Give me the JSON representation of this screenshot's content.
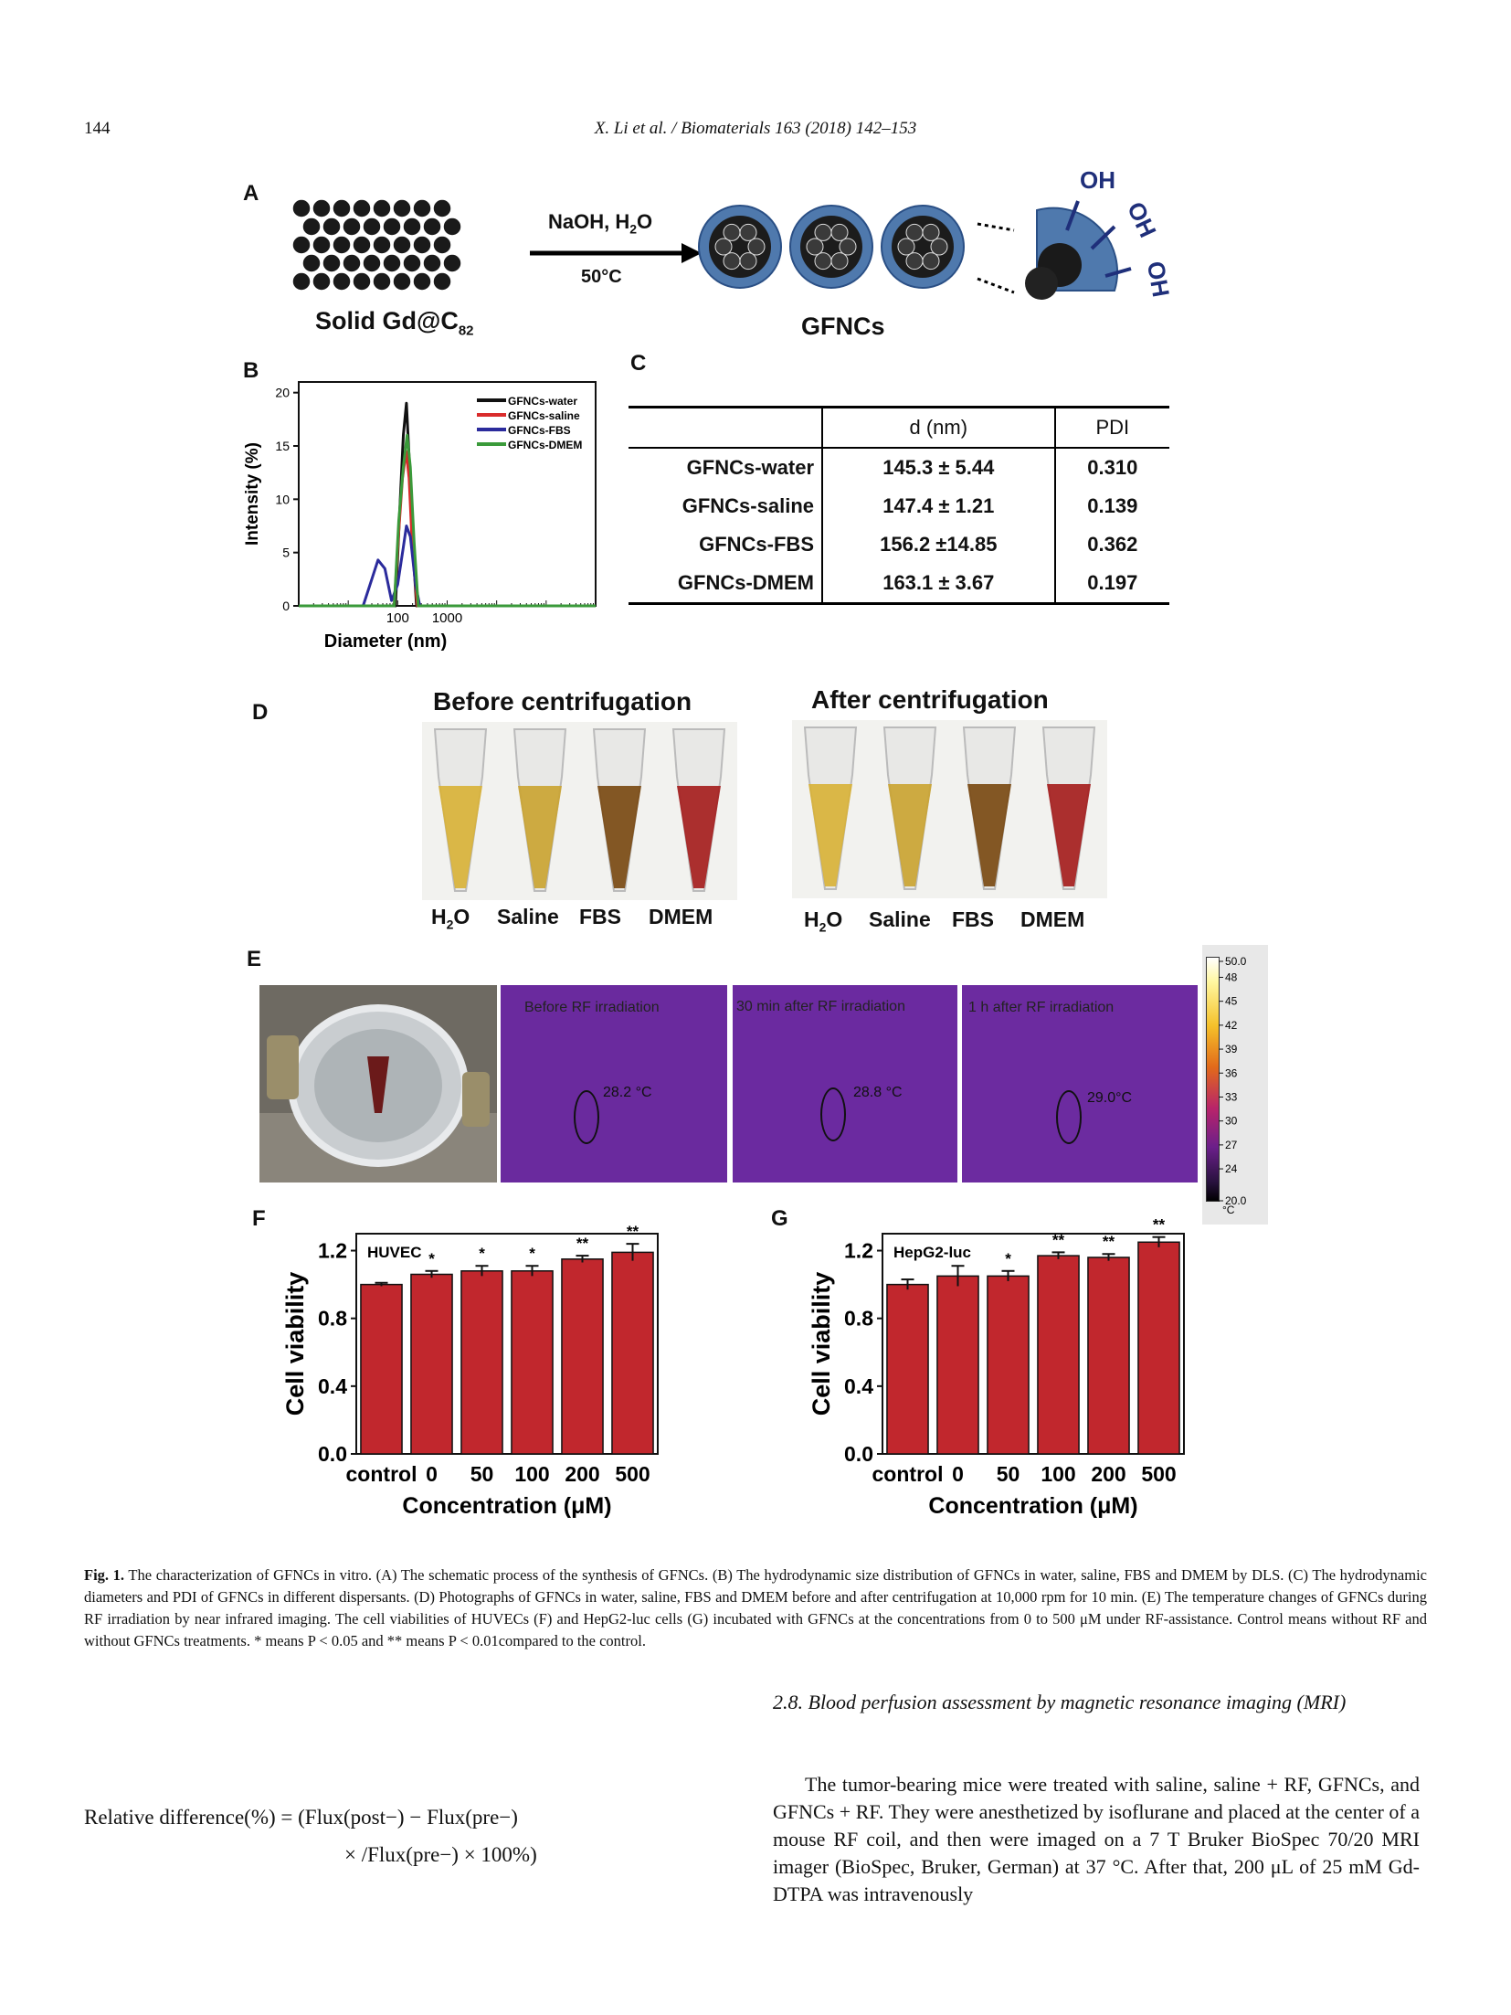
{
  "header": {
    "page_number": "144",
    "citation": "X. Li et al. / Biomaterials 163 (2018) 142–153"
  },
  "panels": {
    "A": "A",
    "B": "B",
    "C": "C",
    "D": "D",
    "E": "E",
    "F": "F",
    "G": "G"
  },
  "schematic": {
    "reagents": "NaOH, H",
    "reagents_sub": "2",
    "reagents_tail": "O",
    "temperature": "50°C",
    "left_label": "Solid Gd@C",
    "left_sub": "82",
    "right_label": "GFNCs",
    "oh": "OH"
  },
  "chart_B": {
    "type": "line",
    "xlabel": "Diameter (nm)",
    "ylabel": "Intensity (%)",
    "x_scale": "log",
    "x_ticks": [
      "100",
      "1000"
    ],
    "y_ticks": [
      "0",
      "5",
      "10",
      "15",
      "20"
    ],
    "ylim": [
      0,
      21
    ],
    "legend_position": "top-right",
    "series": [
      {
        "name": "GFNCs-water",
        "color": "#111111",
        "x": [
          1,
          90,
          110,
          130,
          150,
          170,
          200,
          240,
          1000000
        ],
        "y": [
          0,
          0,
          9,
          16,
          19,
          14,
          6,
          0,
          0
        ]
      },
      {
        "name": "GFNCs-saline",
        "color": "#d92b2b",
        "x": [
          1,
          85,
          105,
          125,
          148,
          170,
          200,
          250,
          1000000
        ],
        "y": [
          0,
          0,
          7,
          12,
          14.5,
          12,
          5,
          0,
          0
        ]
      },
      {
        "name": "GFNCs-FBS",
        "color": "#2b2b9c",
        "x": [
          1,
          20,
          30,
          40,
          55,
          75,
          100,
          130,
          150,
          180,
          230,
          280,
          1000000
        ],
        "y": [
          0,
          0,
          2.5,
          4.3,
          3.5,
          0.5,
          2,
          5.5,
          7.5,
          6.5,
          2,
          0,
          0
        ]
      },
      {
        "name": "GFNCs-DMEM",
        "color": "#3a9a3a",
        "x": [
          1,
          85,
          105,
          130,
          155,
          180,
          215,
          260,
          1000000
        ],
        "y": [
          0,
          0,
          8,
          13,
          16,
          13,
          6,
          0,
          0
        ]
      }
    ]
  },
  "table_C": {
    "headers": [
      "",
      "d (nm)",
      "PDI"
    ],
    "rows": [
      [
        "GFNCs-water",
        "145.3 ± 5.44",
        "0.310"
      ],
      [
        "GFNCs-saline",
        "147.4 ± 1.21",
        "0.139"
      ],
      [
        "GFNCs-FBS",
        "156.2 ±14.85",
        "0.362"
      ],
      [
        "GFNCs-DMEM",
        "163.1 ± 3.67",
        "0.197"
      ]
    ]
  },
  "panel_D": {
    "before_title": "Before centrifugation",
    "after_title": "After centrifugation",
    "tube_labels": [
      "H",
      "Saline",
      "FBS",
      "DMEM"
    ],
    "h2o_sub": "2",
    "h2o_tail": "O",
    "tube_colors": [
      "#d8b23a",
      "#caa433",
      "#7a4a14",
      "#a51e1e"
    ]
  },
  "panel_E": {
    "ir_labels": [
      "Before RF irradiation",
      "30 min after RF irradiation",
      "1 h  after RF irradiation"
    ],
    "ir_temps": [
      "28.2 °C",
      "28.8 °C",
      "29.0°C"
    ],
    "scale_ticks": [
      "50.0",
      "48",
      "45",
      "42",
      "39",
      "36",
      "33",
      "30",
      "27",
      "24",
      "20.0"
    ],
    "scale_unit": "°C"
  },
  "chart_data": [
    {
      "type": "bar",
      "title": "HUVEC",
      "categories": [
        "control",
        "0",
        "50",
        "100",
        "200",
        "500"
      ],
      "values": [
        1.0,
        1.06,
        1.08,
        1.08,
        1.15,
        1.19
      ],
      "errors": [
        0.01,
        0.02,
        0.03,
        0.03,
        0.02,
        0.05
      ],
      "significance": [
        "",
        "*",
        "*",
        "*",
        "**",
        "**"
      ],
      "xlabel": "Concentration (μM)",
      "ylabel": "Cell viability",
      "ylim": [
        0,
        1.3
      ],
      "y_ticks": [
        "0.0",
        "0.4",
        "0.8",
        "1.2"
      ],
      "bar_color": "#c1272d"
    },
    {
      "type": "bar",
      "title": "HepG2-luc",
      "categories": [
        "control",
        "0",
        "50",
        "100",
        "200",
        "500"
      ],
      "values": [
        1.0,
        1.05,
        1.05,
        1.17,
        1.16,
        1.25
      ],
      "errors": [
        0.03,
        0.06,
        0.03,
        0.02,
        0.02,
        0.03
      ],
      "significance": [
        "",
        "",
        "*",
        "**",
        "**",
        "**"
      ],
      "xlabel": "Concentration (μM)",
      "ylabel": "Cell viability",
      "ylim": [
        0,
        1.3
      ],
      "y_ticks": [
        "0.0",
        "0.4",
        "0.8",
        "1.2"
      ],
      "bar_color": "#c1272d"
    }
  ],
  "caption": {
    "label": "Fig. 1.",
    "text": " The characterization of GFNCs in vitro. (A) The schematic process of the synthesis of GFNCs. (B) The hydrodynamic size distribution of GFNCs in water, saline, FBS and DMEM by DLS. (C) The hydrodynamic diameters and PDI of GFNCs in different dispersants. (D) Photographs of GFNCs in water, saline, FBS and DMEM before and after centrifugation at 10,000 rpm for 10 min. (E) The temperature changes of GFNCs during RF irradiation by near infrared imaging. The cell viabilities of HUVECs (F) and HepG2-luc cells (G) incubated with GFNCs at the concentrations from 0 to 500 μM under RF-assistance. Control means without RF and without GFNCs treatments. * means P < 0.05 and ** means P < 0.01compared to the control."
  },
  "equation": {
    "line1": "Relative difference(%) = (Flux(post−) − Flux(pre−)",
    "line2": "× /Flux(pre−) × 100%)"
  },
  "section": {
    "title": "2.8. Blood perfusion assessment by magnetic resonance imaging (MRI)",
    "paragraph": "The tumor-bearing mice were treated with saline, saline + RF, GFNCs, and GFNCs + RF. They were anesthetized by isoflurane and placed at the center of a mouse RF coil, and then were imaged on a 7 T Bruker BioSpec 70/20 MRI imager (BioSpec, Bruker, German) at 37 °C. After that, 200 μL of 25 mM Gd-DTPA was intravenously"
  }
}
